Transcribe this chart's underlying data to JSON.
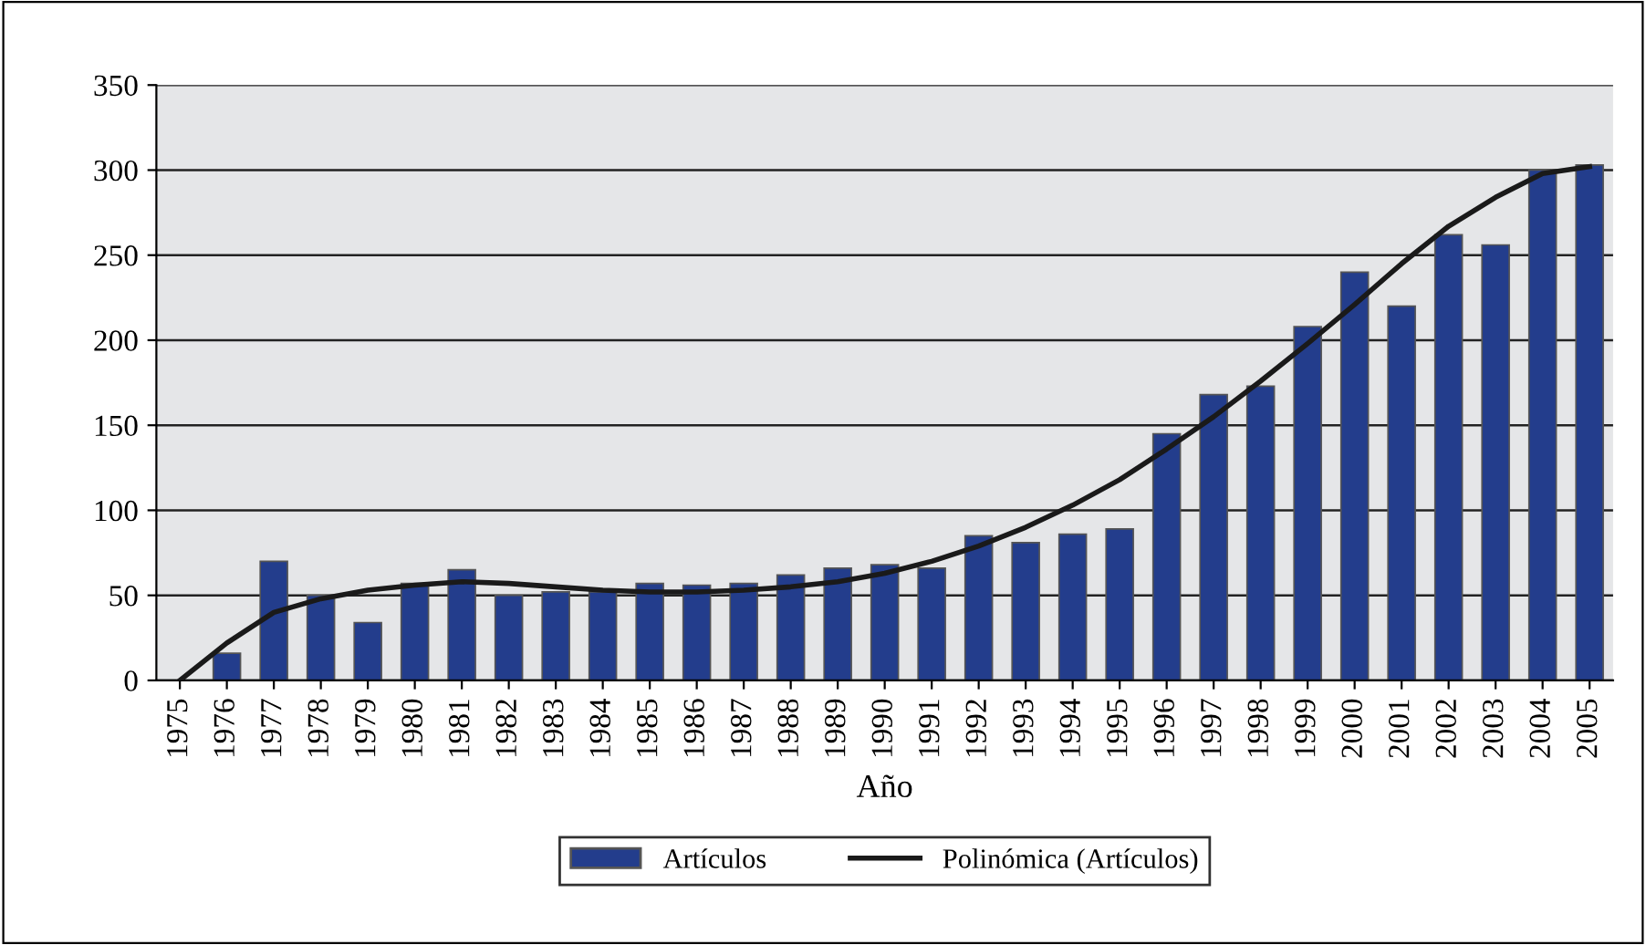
{
  "chart_data": {
    "type": "bar",
    "xlabel": "Año",
    "categories": [
      "1975",
      "1976",
      "1977",
      "1978",
      "1979",
      "1980",
      "1981",
      "1982",
      "1983",
      "1984",
      "1985",
      "1986",
      "1987",
      "1988",
      "1989",
      "1990",
      "1991",
      "1992",
      "1993",
      "1994",
      "1995",
      "1996",
      "1997",
      "1998",
      "1999",
      "2000",
      "2001",
      "2002",
      "2003",
      "2004",
      "2005"
    ],
    "series": [
      {
        "name": "Artículos",
        "color": "#233d8c",
        "values": [
          null,
          16,
          70,
          50,
          34,
          57,
          65,
          50,
          52,
          52,
          57,
          56,
          57,
          62,
          66,
          68,
          66,
          85,
          81,
          86,
          89,
          145,
          168,
          173,
          208,
          240,
          220,
          262,
          256,
          300,
          303
        ]
      },
      {
        "name": "Polinómica (Artículos)",
        "type": "line",
        "color": "#1a1a1a",
        "line_style": "solid",
        "values": [
          0,
          22,
          40,
          48,
          53,
          56,
          58,
          57,
          55,
          53,
          52,
          52,
          53,
          55,
          58,
          63,
          70,
          79,
          90,
          103,
          118,
          136,
          155,
          176,
          198,
          221,
          245,
          267,
          284,
          298,
          302
        ]
      }
    ],
    "ylim": [
      0,
      350
    ],
    "yticks": [
      0,
      50,
      100,
      150,
      200,
      250,
      300,
      350
    ],
    "grid": "y",
    "legend": "bottom"
  }
}
